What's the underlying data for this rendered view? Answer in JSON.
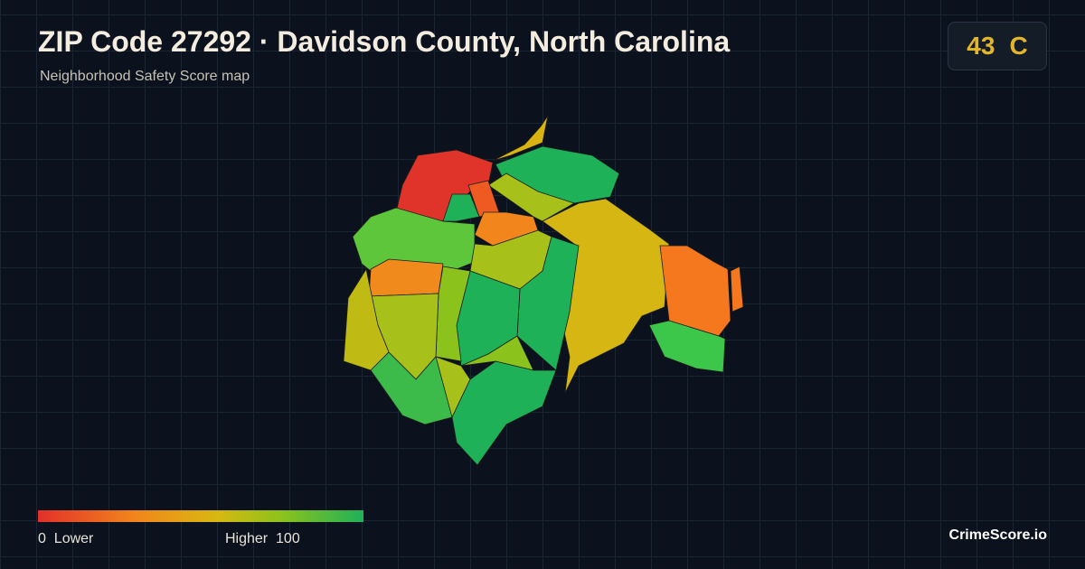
{
  "header": {
    "title": "ZIP Code 27292 · Davidson County, North Carolina",
    "subtitle": "Neighborhood Safety Score map"
  },
  "score": {
    "value": 43,
    "grade": "C"
  },
  "legend": {
    "min": 0,
    "min_label": "Lower",
    "max_label": "Higher",
    "max": 100
  },
  "brand": "CrimeScore.io"
}
